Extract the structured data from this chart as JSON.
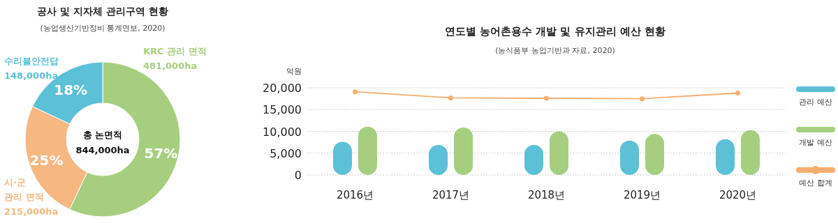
{
  "chart_data": [
    {
      "type": "donut",
      "title": "공사 및 지자체 관리구역 현황",
      "subtitle": "(농업생산기반정비 통계연보, 2020)",
      "categories": [
        "KRC 관리 면적",
        "시·군 관리 면적",
        "수리불안전답"
      ],
      "values": [
        57,
        25,
        18
      ],
      "colors": [
        "#a5cf7e",
        "#f6b781",
        "#5cc0d7"
      ],
      "value_labels": [
        "57%",
        "25%",
        "18%"
      ],
      "annotations": [
        "총 논면적",
        "844,000ha",
        "481,000ha",
        "215,000ha",
        "148,000ha"
      ]
    },
    {
      "type": "bar",
      "title": "연도별 농어촌용수 개발 및 유지관리 예산 현황",
      "subtitle": "(농식품부 농업기반과 자료, 2020)",
      "ylabel": "억원",
      "categories": [
        "2016년",
        "2017년",
        "2018년",
        "2019년",
        "2020년"
      ],
      "series": [
        {
          "name": "관리 예산",
          "color": "#5cc0d7",
          "values": [
            7600,
            6900,
            6900,
            7900,
            8200
          ]
        },
        {
          "name": "개발 예산",
          "color": "#a5cf7e",
          "values": [
            11100,
            10900,
            10000,
            9400,
            10300
          ]
        },
        {
          "name": "예산 합계",
          "type": "line",
          "marker": "circle",
          "color": "#f6ad6e",
          "values": [
            19100,
            17700,
            17600,
            17500,
            18800
          ]
        }
      ],
      "ylim": [
        0,
        20000
      ],
      "yticks": [
        0,
        {
          "value": 5000,
          "label": "5,000"
        },
        {
          "value": 10000,
          "label": "10,000"
        },
        {
          "value": 15000,
          "label": "15,000"
        },
        {
          "value": 20000,
          "label": "20,000"
        }
      ],
      "grid": "y",
      "legend": "right"
    }
  ]
}
